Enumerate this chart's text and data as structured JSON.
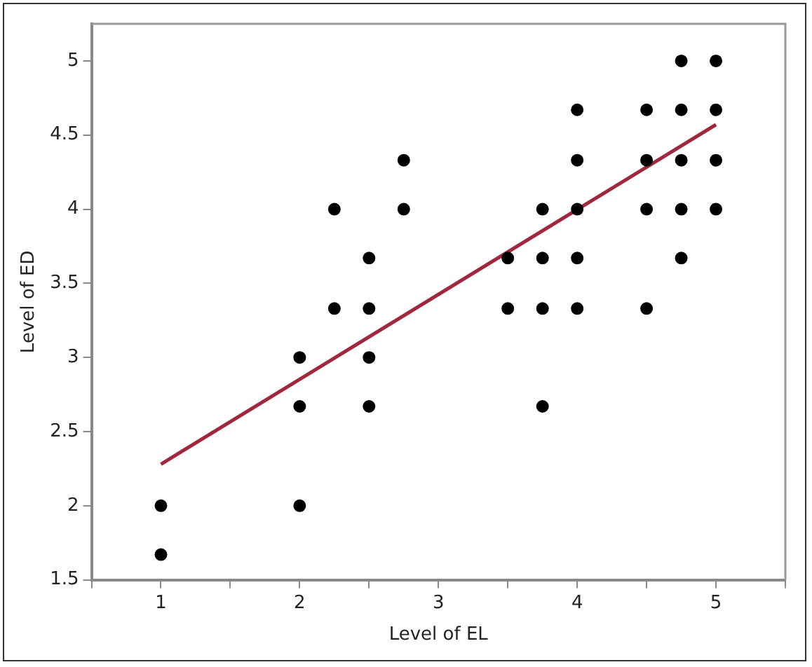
{
  "chart_data": {
    "type": "scatter",
    "xlabel": "Level of EL",
    "ylabel": "Level of ED",
    "xlim": [
      0.5,
      5.5
    ],
    "xticks": [
      {
        "value": 0.5,
        "label": null
      },
      1,
      {
        "value": 1.5,
        "label": null
      },
      2,
      {
        "value": 2.5,
        "label": null
      },
      3,
      {
        "value": 3.5,
        "label": null
      },
      4,
      {
        "value": 4.5,
        "label": null
      },
      5,
      {
        "value": 5.5,
        "label": null
      }
    ],
    "ylim": [
      1.5,
      5.25
    ],
    "yticks": [
      1.5,
      2,
      2.5,
      3,
      3.5,
      4,
      4.5,
      5
    ],
    "grid": false,
    "legend": false,
    "marker": "circle",
    "series": [
      {
        "type": "scatter",
        "color": "#000000",
        "x": [
          1,
          1,
          2,
          2,
          2,
          2.25,
          2.25,
          2.5,
          2.5,
          2.5,
          2.5,
          2.75,
          2.75,
          3.5,
          3.5,
          3.75,
          3.75,
          3.75,
          3.75,
          4,
          4,
          4,
          4,
          4,
          4.5,
          4.5,
          4.5,
          4.5,
          4.75,
          4.75,
          4.75,
          4.75,
          4.75,
          5,
          5,
          5,
          5
        ],
        "values": [
          2,
          1.67,
          3,
          2.67,
          2,
          4,
          3.33,
          3.67,
          3.33,
          3,
          2.67,
          4.33,
          4,
          3.67,
          3.33,
          4,
          3.67,
          3.33,
          2.67,
          4.67,
          4.33,
          4,
          3.67,
          3.33,
          4.67,
          4.33,
          4,
          3.33,
          5,
          4.67,
          4.33,
          4,
          3.67,
          5,
          4.67,
          4.33,
          4
        ]
      },
      {
        "type": "line",
        "color": "#a0283c",
        "x": [
          1,
          5
        ],
        "values": [
          2.28,
          4.57
        ],
        "marker": "none",
        "line_style": "solid"
      }
    ]
  }
}
